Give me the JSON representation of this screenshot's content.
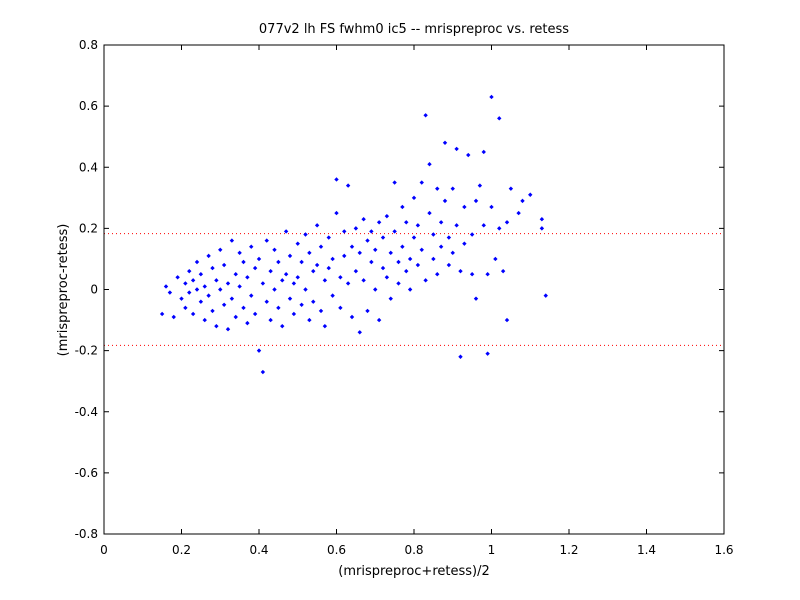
{
  "chart_data": {
    "type": "scatter",
    "title": "077v2 lh FS fwhm0 ic5 -- mrispreproc vs. retess",
    "xlabel": "(mrispreproc+retess)/2",
    "ylabel": "(mrispreproc-retess)",
    "xlim": [
      0,
      1.6
    ],
    "ylim": [
      -0.8,
      0.8
    ],
    "x_ticks": [
      0,
      0.2,
      0.4,
      0.6,
      0.8,
      1,
      1.2,
      1.4,
      1.6
    ],
    "x_tick_labels": [
      "0",
      "0.2",
      "0.4",
      "0.6",
      "0.8",
      "1",
      "1.2",
      "1.4",
      "1.6"
    ],
    "y_ticks": [
      -0.8,
      -0.6,
      -0.4,
      -0.2,
      0,
      0.2,
      0.4,
      0.6,
      0.8
    ],
    "y_tick_labels": [
      "-0.8",
      "-0.6",
      "-0.4",
      "-0.2",
      "0",
      "0.2",
      "0.4",
      "0.6",
      "0.8"
    ],
    "grid": false,
    "marker_color": "#0000ff",
    "reference_line_color": "#ff0000",
    "reference_lines": [
      0.183,
      -0.183
    ],
    "points": [
      [
        0.15,
        -0.08
      ],
      [
        0.16,
        0.01
      ],
      [
        0.17,
        -0.01
      ],
      [
        0.18,
        -0.09
      ],
      [
        0.19,
        0.04
      ],
      [
        0.2,
        -0.03
      ],
      [
        0.21,
        0.02
      ],
      [
        0.21,
        -0.06
      ],
      [
        0.22,
        0.06
      ],
      [
        0.22,
        -0.01
      ],
      [
        0.23,
        0.03
      ],
      [
        0.23,
        -0.08
      ],
      [
        0.24,
        0.09
      ],
      [
        0.24,
        0.0
      ],
      [
        0.25,
        -0.04
      ],
      [
        0.25,
        0.05
      ],
      [
        0.26,
        0.01
      ],
      [
        0.26,
        -0.1
      ],
      [
        0.27,
        0.11
      ],
      [
        0.27,
        -0.02
      ],
      [
        0.28,
        0.07
      ],
      [
        0.28,
        -0.07
      ],
      [
        0.29,
        0.03
      ],
      [
        0.29,
        -0.12
      ],
      [
        0.3,
        0.13
      ],
      [
        0.3,
        0.0
      ],
      [
        0.31,
        -0.05
      ],
      [
        0.31,
        0.08
      ],
      [
        0.32,
        0.02
      ],
      [
        0.32,
        -0.13
      ],
      [
        0.33,
        0.16
      ],
      [
        0.33,
        -0.03
      ],
      [
        0.34,
        0.05
      ],
      [
        0.34,
        -0.09
      ],
      [
        0.35,
        0.12
      ],
      [
        0.35,
        0.01
      ],
      [
        0.36,
        -0.06
      ],
      [
        0.36,
        0.09
      ],
      [
        0.37,
        -0.11
      ],
      [
        0.37,
        0.04
      ],
      [
        0.38,
        0.14
      ],
      [
        0.38,
        -0.02
      ],
      [
        0.39,
        0.07
      ],
      [
        0.39,
        -0.08
      ],
      [
        0.4,
        0.1
      ],
      [
        0.4,
        -0.2
      ],
      [
        0.41,
        -0.27
      ],
      [
        0.41,
        0.02
      ],
      [
        0.42,
        0.16
      ],
      [
        0.42,
        -0.04
      ],
      [
        0.43,
        0.06
      ],
      [
        0.43,
        -0.1
      ],
      [
        0.44,
        0.13
      ],
      [
        0.44,
        0.0
      ],
      [
        0.45,
        -0.06
      ],
      [
        0.45,
        0.09
      ],
      [
        0.46,
        0.03
      ],
      [
        0.46,
        -0.12
      ],
      [
        0.47,
        0.19
      ],
      [
        0.47,
        0.05
      ],
      [
        0.48,
        -0.03
      ],
      [
        0.48,
        0.11
      ],
      [
        0.49,
        0.02
      ],
      [
        0.49,
        -0.08
      ],
      [
        0.5,
        0.15
      ],
      [
        0.5,
        0.04
      ],
      [
        0.51,
        -0.05
      ],
      [
        0.51,
        0.09
      ],
      [
        0.52,
        0.18
      ],
      [
        0.52,
        0.0
      ],
      [
        0.53,
        -0.1
      ],
      [
        0.53,
        0.12
      ],
      [
        0.54,
        0.06
      ],
      [
        0.54,
        -0.04
      ],
      [
        0.55,
        0.21
      ],
      [
        0.55,
        0.08
      ],
      [
        0.56,
        -0.07
      ],
      [
        0.56,
        0.14
      ],
      [
        0.57,
        0.03
      ],
      [
        0.57,
        -0.12
      ],
      [
        0.58,
        0.17
      ],
      [
        0.58,
        0.07
      ],
      [
        0.59,
        -0.02
      ],
      [
        0.59,
        0.1
      ],
      [
        0.6,
        0.25
      ],
      [
        0.6,
        0.36
      ],
      [
        0.61,
        0.04
      ],
      [
        0.61,
        -0.06
      ],
      [
        0.62,
        0.19
      ],
      [
        0.62,
        0.11
      ],
      [
        0.63,
        0.34
      ],
      [
        0.63,
        0.02
      ],
      [
        0.64,
        0.14
      ],
      [
        0.64,
        -0.09
      ],
      [
        0.65,
        0.2
      ],
      [
        0.65,
        0.06
      ],
      [
        0.66,
        -0.14
      ],
      [
        0.66,
        0.12
      ],
      [
        0.67,
        0.23
      ],
      [
        0.67,
        0.03
      ],
      [
        0.68,
        0.16
      ],
      [
        0.68,
        -0.07
      ],
      [
        0.69,
        0.09
      ],
      [
        0.69,
        0.19
      ],
      [
        0.7,
        0.0
      ],
      [
        0.7,
        0.13
      ],
      [
        0.71,
        0.22
      ],
      [
        0.71,
        -0.1
      ],
      [
        0.72,
        0.07
      ],
      [
        0.72,
        0.17
      ],
      [
        0.73,
        0.24
      ],
      [
        0.73,
        0.04
      ],
      [
        0.74,
        0.12
      ],
      [
        0.74,
        -0.03
      ],
      [
        0.75,
        0.35
      ],
      [
        0.75,
        0.19
      ],
      [
        0.76,
        0.09
      ],
      [
        0.76,
        0.02
      ],
      [
        0.77,
        0.27
      ],
      [
        0.77,
        0.14
      ],
      [
        0.78,
        0.06
      ],
      [
        0.78,
        0.22
      ],
      [
        0.79,
        0.1
      ],
      [
        0.79,
        0.0
      ],
      [
        0.8,
        0.3
      ],
      [
        0.8,
        0.17
      ],
      [
        0.81,
        0.21
      ],
      [
        0.81,
        0.08
      ],
      [
        0.82,
        0.35
      ],
      [
        0.82,
        0.13
      ],
      [
        0.83,
        0.03
      ],
      [
        0.83,
        0.57
      ],
      [
        0.84,
        0.41
      ],
      [
        0.84,
        0.25
      ],
      [
        0.85,
        0.1
      ],
      [
        0.85,
        0.18
      ],
      [
        0.86,
        0.05
      ],
      [
        0.86,
        0.33
      ],
      [
        0.87,
        0.22
      ],
      [
        0.87,
        0.14
      ],
      [
        0.88,
        0.48
      ],
      [
        0.88,
        0.29
      ],
      [
        0.89,
        0.08
      ],
      [
        0.89,
        0.17
      ],
      [
        0.9,
        0.33
      ],
      [
        0.9,
        0.12
      ],
      [
        0.91,
        0.46
      ],
      [
        0.91,
        0.21
      ],
      [
        0.92,
        -0.22
      ],
      [
        0.92,
        0.06
      ],
      [
        0.93,
        0.27
      ],
      [
        0.93,
        0.15
      ],
      [
        0.94,
        0.44
      ],
      [
        0.95,
        0.05
      ],
      [
        0.95,
        0.18
      ],
      [
        0.96,
        0.29
      ],
      [
        0.96,
        -0.03
      ],
      [
        0.97,
        0.34
      ],
      [
        0.98,
        0.45
      ],
      [
        0.98,
        0.21
      ],
      [
        0.99,
        -0.21
      ],
      [
        0.99,
        0.05
      ],
      [
        1.0,
        0.63
      ],
      [
        1.0,
        0.27
      ],
      [
        1.01,
        0.1
      ],
      [
        1.02,
        0.2
      ],
      [
        1.02,
        0.56
      ],
      [
        1.03,
        0.06
      ],
      [
        1.04,
        -0.1
      ],
      [
        1.04,
        0.22
      ],
      [
        1.05,
        0.33
      ],
      [
        1.07,
        0.25
      ],
      [
        1.08,
        0.29
      ],
      [
        1.1,
        0.31
      ],
      [
        1.13,
        0.2
      ],
      [
        1.13,
        0.23
      ],
      [
        1.14,
        -0.02
      ]
    ]
  }
}
